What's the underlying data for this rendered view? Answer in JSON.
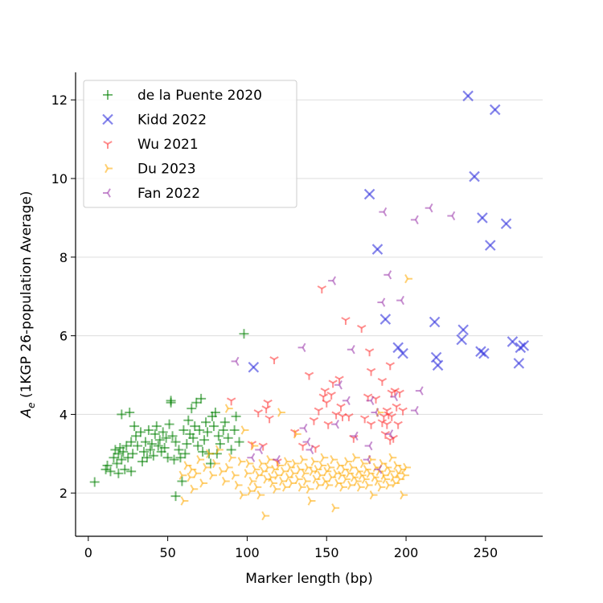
{
  "chart_data": {
    "type": "scatter",
    "xlabel": "Marker length (bp)",
    "ylabel_main": "A",
    "ylabel_sub": "e",
    "ylabel_rest": " (1KGP 26-population Average)",
    "xlim": [
      -8,
      286
    ],
    "ylim": [
      0.9,
      12.7
    ],
    "xticks": [
      0,
      50,
      100,
      150,
      200,
      250
    ],
    "yticks": [
      2,
      4,
      6,
      8,
      10,
      12
    ],
    "grid": "horizontal",
    "legend_position": "top-left",
    "series": [
      {
        "name": "de la Puente 2020",
        "color": "#008000",
        "marker": "plus",
        "points": [
          [
            4,
            2.28
          ],
          [
            11,
            2.6
          ],
          [
            12,
            2.7
          ],
          [
            14,
            2.55
          ],
          [
            16,
            2.9
          ],
          [
            17,
            3.1
          ],
          [
            18,
            2.75
          ],
          [
            19,
            2.5
          ],
          [
            19,
            3.0
          ],
          [
            20,
            3.15
          ],
          [
            21,
            2.85
          ],
          [
            21,
            4.0
          ],
          [
            22,
            3.05
          ],
          [
            23,
            2.6
          ],
          [
            24,
            3.2
          ],
          [
            25,
            2.9
          ],
          [
            26,
            4.05
          ],
          [
            27,
            3.3
          ],
          [
            27,
            2.55
          ],
          [
            28,
            3.0
          ],
          [
            29,
            3.7
          ],
          [
            30,
            3.45
          ],
          [
            31,
            3.2
          ],
          [
            33,
            3.55
          ],
          [
            34,
            2.8
          ],
          [
            35,
            3.05
          ],
          [
            36,
            3.3
          ],
          [
            37,
            2.9
          ],
          [
            38,
            3.6
          ],
          [
            39,
            3.1
          ],
          [
            40,
            3.25
          ],
          [
            41,
            2.95
          ],
          [
            42,
            3.5
          ],
          [
            43,
            3.7
          ],
          [
            44,
            3.2
          ],
          [
            45,
            3.35
          ],
          [
            46,
            3.05
          ],
          [
            47,
            3.55
          ],
          [
            48,
            3.15
          ],
          [
            49,
            3.4
          ],
          [
            50,
            2.9
          ],
          [
            51,
            3.75
          ],
          [
            52,
            4.35
          ],
          [
            52,
            4.3
          ],
          [
            53,
            3.45
          ],
          [
            54,
            2.85
          ],
          [
            55,
            3.3
          ],
          [
            55,
            1.92
          ],
          [
            57,
            3.1
          ],
          [
            58,
            2.9
          ],
          [
            59,
            2.3
          ],
          [
            60,
            3.6
          ],
          [
            61,
            3.0
          ],
          [
            62,
            3.25
          ],
          [
            63,
            3.85
          ],
          [
            64,
            3.5
          ],
          [
            65,
            4.15
          ],
          [
            66,
            3.4
          ],
          [
            67,
            3.7
          ],
          [
            68,
            4.3
          ],
          [
            69,
            3.2
          ],
          [
            70,
            3.6
          ],
          [
            71,
            4.4
          ],
          [
            72,
            3.05
          ],
          [
            73,
            3.35
          ],
          [
            74,
            3.8
          ],
          [
            75,
            3.55
          ],
          [
            76,
            3.0
          ],
          [
            77,
            2.75
          ],
          [
            78,
            3.95
          ],
          [
            79,
            3.7
          ],
          [
            80,
            4.05
          ],
          [
            81,
            3.0
          ],
          [
            82,
            3.45
          ],
          [
            83,
            3.25
          ],
          [
            85,
            3.6
          ],
          [
            86,
            3.8
          ],
          [
            88,
            3.4
          ],
          [
            90,
            3.1
          ],
          [
            92,
            3.6
          ],
          [
            93,
            3.95
          ],
          [
            95,
            3.3
          ],
          [
            98,
            6.05
          ]
        ]
      },
      {
        "name": "Kidd 2022",
        "color": "#3333dd",
        "marker": "x",
        "points": [
          [
            104,
            5.2
          ],
          [
            177,
            9.6
          ],
          [
            182,
            8.2
          ],
          [
            187,
            6.42
          ],
          [
            195,
            5.7
          ],
          [
            198,
            5.55
          ],
          [
            218,
            6.35
          ],
          [
            219,
            5.45
          ],
          [
            220,
            5.25
          ],
          [
            235,
            5.9
          ],
          [
            236,
            6.15
          ],
          [
            239,
            12.1
          ],
          [
            243,
            10.05
          ],
          [
            247,
            5.6
          ],
          [
            248,
            9.0
          ],
          [
            249,
            5.55
          ],
          [
            253,
            8.3
          ],
          [
            256,
            11.75
          ],
          [
            263,
            8.85
          ],
          [
            267,
            5.85
          ],
          [
            271,
            5.3
          ],
          [
            272,
            5.7
          ],
          [
            274,
            5.75
          ]
        ]
      },
      {
        "name": "Wu 2021",
        "color": "#ff3333",
        "marker": "tri_down",
        "points": [
          [
            90,
            4.35
          ],
          [
            103,
            3.25
          ],
          [
            107,
            4.05
          ],
          [
            110,
            3.2
          ],
          [
            112,
            4.15
          ],
          [
            113,
            4.3
          ],
          [
            114,
            3.9
          ],
          [
            117,
            5.4
          ],
          [
            119,
            2.8
          ],
          [
            130,
            3.55
          ],
          [
            135,
            3.2
          ],
          [
            139,
            5.0
          ],
          [
            142,
            3.85
          ],
          [
            143,
            3.15
          ],
          [
            145,
            4.1
          ],
          [
            147,
            7.2
          ],
          [
            148,
            4.45
          ],
          [
            149,
            4.6
          ],
          [
            150,
            4.3
          ],
          [
            151,
            3.75
          ],
          [
            153,
            4.5
          ],
          [
            154,
            4.8
          ],
          [
            156,
            4.0
          ],
          [
            158,
            4.9
          ],
          [
            159,
            4.2
          ],
          [
            160,
            3.95
          ],
          [
            162,
            6.4
          ],
          [
            164,
            3.95
          ],
          [
            167,
            3.4
          ],
          [
            172,
            6.2
          ],
          [
            174,
            3.9
          ],
          [
            176,
            4.45
          ],
          [
            177,
            5.6
          ],
          [
            178,
            5.1
          ],
          [
            178,
            3.75
          ],
          [
            181,
            4.4
          ],
          [
            185,
            4.85
          ],
          [
            185,
            3.8
          ],
          [
            186,
            3.95
          ],
          [
            187,
            3.5
          ],
          [
            188,
            4.1
          ],
          [
            188,
            3.75
          ],
          [
            189,
            4.0
          ],
          [
            190,
            5.25
          ],
          [
            190,
            3.35
          ],
          [
            191,
            4.55
          ],
          [
            191,
            3.95
          ],
          [
            192,
            3.4
          ],
          [
            193,
            4.6
          ],
          [
            194,
            4.2
          ],
          [
            195,
            3.75
          ],
          [
            196,
            4.55
          ],
          [
            198,
            4.1
          ]
        ]
      },
      {
        "name": "Du 2023",
        "color": "#ffaa00",
        "marker": "tri_right",
        "points": [
          [
            59,
            2.45
          ],
          [
            60,
            1.8
          ],
          [
            62,
            2.7
          ],
          [
            64,
            2.4
          ],
          [
            65,
            2.6
          ],
          [
            66,
            2.1
          ],
          [
            68,
            2.5
          ],
          [
            70,
            2.85
          ],
          [
            72,
            2.25
          ],
          [
            74,
            2.65
          ],
          [
            76,
            3.0
          ],
          [
            78,
            2.45
          ],
          [
            80,
            2.75
          ],
          [
            82,
            3.1
          ],
          [
            84,
            2.55
          ],
          [
            86,
            2.3
          ],
          [
            88,
            4.15
          ],
          [
            88,
            2.65
          ],
          [
            90,
            2.9
          ],
          [
            92,
            2.45
          ],
          [
            94,
            2.2
          ],
          [
            96,
            2.8
          ],
          [
            97,
            1.95
          ],
          [
            98,
            3.6
          ],
          [
            100,
            2.5
          ],
          [
            101,
            2.75
          ],
          [
            102,
            2.05
          ],
          [
            103,
            2.3
          ],
          [
            104,
            3.2
          ],
          [
            105,
            2.6
          ],
          [
            106,
            2.15
          ],
          [
            107,
            2.45
          ],
          [
            108,
            1.95
          ],
          [
            109,
            2.75
          ],
          [
            110,
            2.55
          ],
          [
            111,
            1.42
          ],
          [
            112,
            2.35
          ],
          [
            113,
            2.65
          ],
          [
            114,
            2.85
          ],
          [
            115,
            2.4
          ],
          [
            116,
            2.25
          ],
          [
            117,
            2.6
          ],
          [
            118,
            2.1
          ],
          [
            119,
            2.45
          ],
          [
            120,
            2.7
          ],
          [
            121,
            4.05
          ],
          [
            122,
            2.3
          ],
          [
            123,
            2.55
          ],
          [
            124,
            2.15
          ],
          [
            125,
            2.8
          ],
          [
            126,
            2.4
          ],
          [
            127,
            2.65
          ],
          [
            128,
            2.25
          ],
          [
            129,
            2.5
          ],
          [
            130,
            2.75
          ],
          [
            131,
            3.5
          ],
          [
            132,
            2.35
          ],
          [
            133,
            2.6
          ],
          [
            134,
            2.15
          ],
          [
            135,
            2.85
          ],
          [
            136,
            2.5
          ],
          [
            137,
            2.3
          ],
          [
            138,
            2.65
          ],
          [
            139,
            2.1
          ],
          [
            140,
            1.8
          ],
          [
            141,
            2.55
          ],
          [
            142,
            2.8
          ],
          [
            143,
            2.35
          ],
          [
            144,
            2.6
          ],
          [
            145,
            2.2
          ],
          [
            146,
            2.45
          ],
          [
            147,
            2.7
          ],
          [
            148,
            2.9
          ],
          [
            149,
            2.3
          ],
          [
            150,
            2.55
          ],
          [
            151,
            2.2
          ],
          [
            152,
            2.65
          ],
          [
            153,
            2.4
          ],
          [
            154,
            2.85
          ],
          [
            155,
            1.62
          ],
          [
            156,
            2.5
          ],
          [
            157,
            2.25
          ],
          [
            158,
            2.7
          ],
          [
            159,
            2.45
          ],
          [
            160,
            2.15
          ],
          [
            161,
            2.6
          ],
          [
            162,
            2.35
          ],
          [
            163,
            2.8
          ],
          [
            164,
            2.5
          ],
          [
            165,
            2.2
          ],
          [
            166,
            2.65
          ],
          [
            167,
            2.4
          ],
          [
            168,
            2.9
          ],
          [
            169,
            2.3
          ],
          [
            170,
            2.55
          ],
          [
            171,
            2.15
          ],
          [
            172,
            2.45
          ],
          [
            173,
            2.75
          ],
          [
            174,
            2.35
          ],
          [
            175,
            2.6
          ],
          [
            176,
            2.2
          ],
          [
            177,
            2.5
          ],
          [
            178,
            2.85
          ],
          [
            179,
            1.95
          ],
          [
            180,
            2.4
          ],
          [
            181,
            2.65
          ],
          [
            182,
            2.3
          ],
          [
            183,
            4.05
          ],
          [
            183,
            2.55
          ],
          [
            184,
            2.15
          ],
          [
            185,
            2.75
          ],
          [
            186,
            2.45
          ],
          [
            187,
            2.35
          ],
          [
            188,
            2.65
          ],
          [
            189,
            2.2
          ],
          [
            190,
            2.55
          ],
          [
            191,
            2.9
          ],
          [
            192,
            2.4
          ],
          [
            193,
            2.25
          ],
          [
            194,
            2.7
          ],
          [
            195,
            2.5
          ],
          [
            196,
            2.35
          ],
          [
            197,
            2.6
          ],
          [
            198,
            1.95
          ],
          [
            199,
            2.45
          ],
          [
            200,
            2.65
          ],
          [
            201,
            7.45
          ]
        ]
      },
      {
        "name": "Fan 2022",
        "color": "#9933aa",
        "marker": "tri_left",
        "points": [
          [
            93,
            5.35
          ],
          [
            103,
            2.9
          ],
          [
            108,
            3.1
          ],
          [
            119,
            2.85
          ],
          [
            135,
            5.7
          ],
          [
            136,
            3.65
          ],
          [
            138,
            3.3
          ],
          [
            140,
            3.1
          ],
          [
            154,
            7.4
          ],
          [
            156,
            3.75
          ],
          [
            158,
            4.75
          ],
          [
            163,
            4.35
          ],
          [
            166,
            5.65
          ],
          [
            168,
            3.45
          ],
          [
            176,
            2.85
          ],
          [
            177,
            3.2
          ],
          [
            178,
            4.35
          ],
          [
            181,
            4.05
          ],
          [
            183,
            2.6
          ],
          [
            185,
            6.85
          ],
          [
            186,
            9.15
          ],
          [
            189,
            7.55
          ],
          [
            190,
            3.5
          ],
          [
            193,
            4.45
          ],
          [
            197,
            6.9
          ],
          [
            206,
            4.1
          ],
          [
            206,
            8.95
          ],
          [
            209,
            4.6
          ],
          [
            215,
            9.25
          ],
          [
            229,
            9.05
          ]
        ]
      }
    ]
  }
}
